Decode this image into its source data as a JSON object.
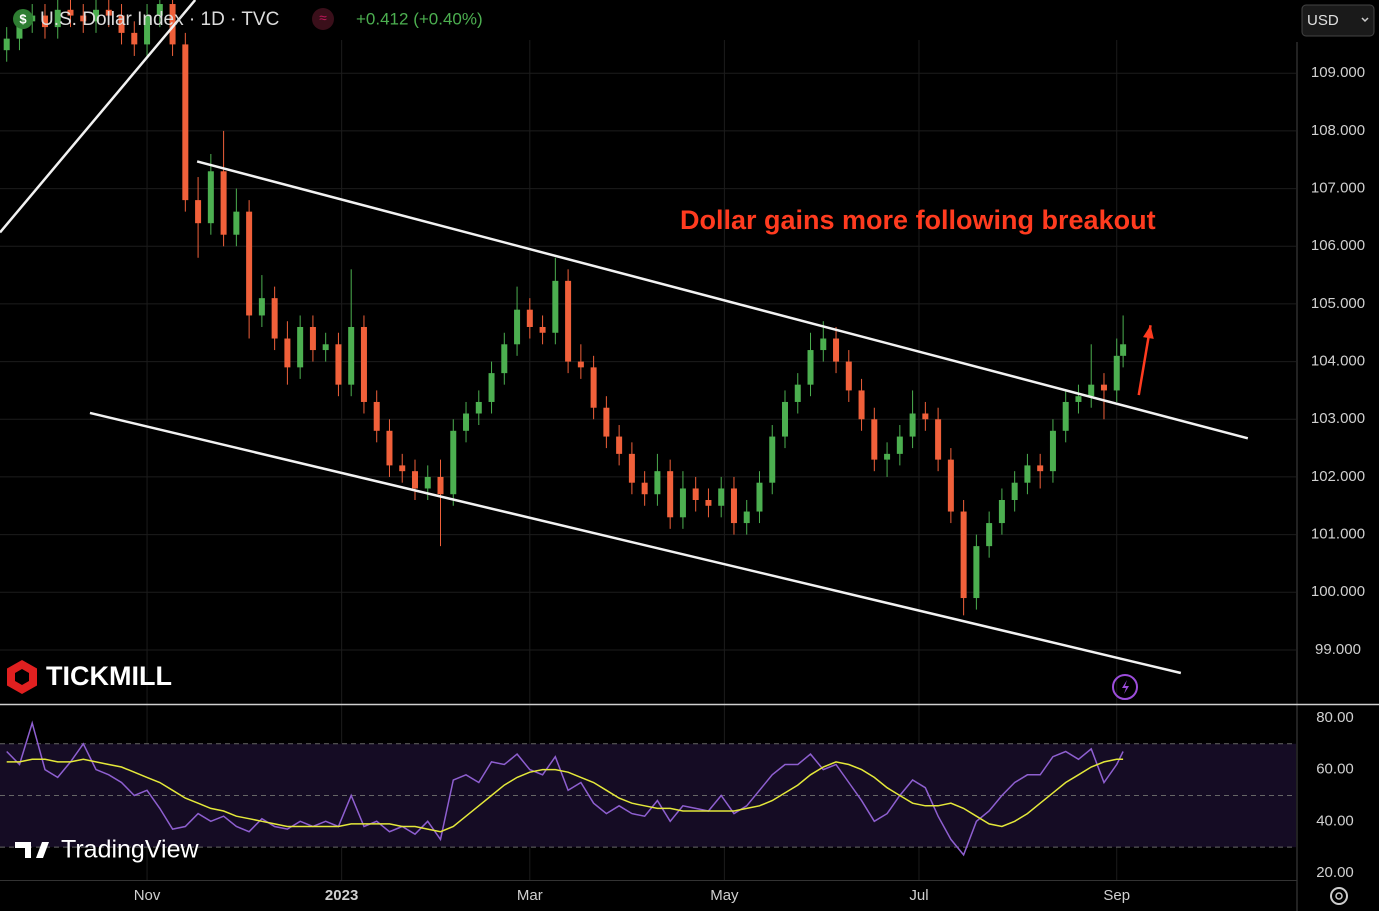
{
  "chart_data": {
    "type": "candlestick",
    "title": "U.S. Dollar Index · 1D · TVC",
    "change": "+0.412 (+0.40%)",
    "currency": "USD",
    "annotation": "Dollar gains more following breakout",
    "brand": "TICKMILL",
    "watermark": "TradingView",
    "up_color": "#4caf50",
    "down_color": "#f0603a",
    "grid": true,
    "x": [
      -44,
      -40,
      -36,
      -32,
      -28,
      -24,
      -20,
      -16,
      -12,
      -8,
      -4,
      0,
      4,
      8,
      12,
      16,
      20,
      24,
      28,
      32,
      36,
      40,
      44,
      48,
      52,
      56,
      60,
      64,
      68,
      72,
      76,
      80,
      84,
      88,
      92,
      96,
      100,
      104,
      108,
      112,
      116,
      120,
      124,
      128,
      132,
      136,
      140,
      144,
      148,
      152,
      156,
      160,
      164,
      168,
      172,
      176,
      180,
      184,
      188,
      192,
      196,
      200,
      204,
      208,
      212,
      216,
      220,
      224,
      228,
      232,
      236,
      240,
      244,
      248,
      252,
      256,
      260,
      264,
      268,
      272,
      276,
      280,
      284,
      288,
      292,
      296,
      300,
      304,
      306
    ],
    "open": [
      109.4,
      109.6,
      109.9,
      110.0,
      109.8,
      110.1,
      110.0,
      109.9,
      110.1,
      110.0,
      109.7,
      109.5,
      110.0,
      110.2,
      109.5,
      106.8,
      106.4,
      107.3,
      106.2,
      106.6,
      104.8,
      105.1,
      104.4,
      103.9,
      104.6,
      104.2,
      104.3,
      103.6,
      104.6,
      103.3,
      102.8,
      102.2,
      102.1,
      101.8,
      102.0,
      101.7,
      102.8,
      103.1,
      103.3,
      103.8,
      104.3,
      104.9,
      104.6,
      104.5,
      105.4,
      104.0,
      103.9,
      103.2,
      102.7,
      102.4,
      101.9,
      101.7,
      102.1,
      101.3,
      101.8,
      101.6,
      101.5,
      101.8,
      101.2,
      101.4,
      101.9,
      102.7,
      103.3,
      103.6,
      104.2,
      104.4,
      104.0,
      103.5,
      103.0,
      102.3,
      102.4,
      102.7,
      103.1,
      103.0,
      102.3,
      101.4,
      99.9,
      100.8,
      101.2,
      101.6,
      101.9,
      102.2,
      102.1,
      102.8,
      103.3,
      103.4,
      103.6,
      103.5,
      104.1
    ],
    "high": [
      109.8,
      110.1,
      110.2,
      110.2,
      110.3,
      110.3,
      110.2,
      110.3,
      110.3,
      110.2,
      109.9,
      110.2,
      110.4,
      110.4,
      109.7,
      107.2,
      107.6,
      108.0,
      107.0,
      106.8,
      105.5,
      105.3,
      104.7,
      104.8,
      104.8,
      104.5,
      104.5,
      105.6,
      104.8,
      103.5,
      103.0,
      102.4,
      102.3,
      102.2,
      102.3,
      103.0,
      103.3,
      103.5,
      104.0,
      104.5,
      105.3,
      105.1,
      104.8,
      105.8,
      105.6,
      104.3,
      104.1,
      103.4,
      102.9,
      102.6,
      102.1,
      102.4,
      102.3,
      102.1,
      102.0,
      101.8,
      102.0,
      102.0,
      101.6,
      102.1,
      102.9,
      103.5,
      103.8,
      104.5,
      104.7,
      104.6,
      104.2,
      103.7,
      103.2,
      102.6,
      102.9,
      103.5,
      103.3,
      103.2,
      102.5,
      101.6,
      101.0,
      101.4,
      101.8,
      102.1,
      102.4,
      102.4,
      103.0,
      103.5,
      103.6,
      104.3,
      103.8,
      104.4,
      104.8
    ],
    "low": [
      109.2,
      109.4,
      109.7,
      109.6,
      109.6,
      109.8,
      109.7,
      109.7,
      109.8,
      109.5,
      109.3,
      109.3,
      109.8,
      109.3,
      106.6,
      105.8,
      106.2,
      106.0,
      106.0,
      104.4,
      104.6,
      104.2,
      103.6,
      103.7,
      104.0,
      104.0,
      103.4,
      103.4,
      103.1,
      102.6,
      102.0,
      101.9,
      101.6,
      101.6,
      100.8,
      101.5,
      102.6,
      102.9,
      103.1,
      103.6,
      104.1,
      104.4,
      104.3,
      104.3,
      103.8,
      103.7,
      103.0,
      102.5,
      102.2,
      101.7,
      101.5,
      101.5,
      101.1,
      101.1,
      101.4,
      101.3,
      101.3,
      101.0,
      101.0,
      101.2,
      101.7,
      102.5,
      103.1,
      103.4,
      104.0,
      103.8,
      103.3,
      102.8,
      102.1,
      102.0,
      102.2,
      102.5,
      102.8,
      102.1,
      101.2,
      99.6,
      99.7,
      100.6,
      101.0,
      101.4,
      101.7,
      101.8,
      101.9,
      102.6,
      103.1,
      103.2,
      103.0,
      103.3,
      103.9
    ],
    "close": [
      109.6,
      109.9,
      110.0,
      109.8,
      110.1,
      110.0,
      109.9,
      110.1,
      110.0,
      109.7,
      109.5,
      110.0,
      110.2,
      109.5,
      106.8,
      106.4,
      107.3,
      106.2,
      106.6,
      104.8,
      105.1,
      104.4,
      103.9,
      104.6,
      104.2,
      104.3,
      103.6,
      104.6,
      103.3,
      102.8,
      102.2,
      102.1,
      101.8,
      102.0,
      101.7,
      102.8,
      103.1,
      103.3,
      103.8,
      104.3,
      104.9,
      104.6,
      104.5,
      105.4,
      104.0,
      103.9,
      103.2,
      102.7,
      102.4,
      101.9,
      101.7,
      102.1,
      101.3,
      101.8,
      101.6,
      101.5,
      101.8,
      101.2,
      101.4,
      101.9,
      102.7,
      103.3,
      103.6,
      104.2,
      104.4,
      104.0,
      103.5,
      103.0,
      102.3,
      102.4,
      102.7,
      103.1,
      103.0,
      102.3,
      101.4,
      99.9,
      100.8,
      101.2,
      101.6,
      101.9,
      102.2,
      102.1,
      102.8,
      103.3,
      103.4,
      103.6,
      103.5,
      104.1,
      104.3
    ],
    "xlim": [
      -46.1,
      360.2
    ],
    "xticks": [
      {
        "value": 0,
        "label": "Nov"
      },
      {
        "value": 61,
        "label": "2023"
      },
      {
        "value": 120,
        "label": "Mar"
      },
      {
        "value": 181,
        "label": "May"
      },
      {
        "value": 242,
        "label": "Jul"
      },
      {
        "value": 304,
        "label": "Sep"
      }
    ],
    "ylim": [
      98.08,
      110.27
    ],
    "yticks": [
      {
        "value": 99,
        "label": "99.000"
      },
      {
        "value": 100,
        "label": "100.000"
      },
      {
        "value": 101,
        "label": "101.000"
      },
      {
        "value": 102,
        "label": "102.000"
      },
      {
        "value": 103,
        "label": "103.000"
      },
      {
        "value": 104,
        "label": "104.000"
      },
      {
        "value": 105,
        "label": "105.000"
      },
      {
        "value": 106,
        "label": "106.000"
      },
      {
        "value": 107,
        "label": "107.000"
      },
      {
        "value": 108,
        "label": "108.000"
      },
      {
        "value": 109,
        "label": "109.000"
      }
    ],
    "trendlines": [
      {
        "x": [
          -46.1,
          15.1
        ],
        "y": [
          106.24,
          110.27
        ]
      },
      {
        "x": [
          15.7,
          345.1
        ],
        "y": [
          107.47,
          102.67
        ]
      },
      {
        "x": [
          -17.9,
          324.1
        ],
        "y": [
          103.11,
          98.6
        ]
      }
    ],
    "arrow": {
      "x": [
        310.9,
        314.6
      ],
      "y": [
        103.42,
        104.63
      ],
      "color": "#ff3b1f"
    },
    "rsi": {
      "color": "#8e5fd0",
      "ma_color": "#e4e83a",
      "ylim": [
        17.3,
        85.0
      ],
      "yticks": [
        {
          "value": 20,
          "label": "20.00"
        },
        {
          "value": 40,
          "label": "40.00"
        },
        {
          "value": 60,
          "label": "60.00"
        },
        {
          "value": 80,
          "label": "80.00"
        }
      ],
      "bands": [
        70,
        50,
        30
      ],
      "values": [
        67,
        62,
        78,
        60,
        57,
        63,
        70,
        60,
        58,
        55,
        50,
        52,
        45,
        37,
        38,
        43,
        40,
        42,
        38,
        36,
        41,
        38,
        37,
        40,
        38,
        40,
        38,
        50,
        38,
        40,
        36,
        38,
        35,
        40,
        33,
        56,
        58,
        55,
        63,
        62,
        66,
        60,
        58,
        65,
        52,
        55,
        47,
        43,
        46,
        43,
        42,
        48,
        40,
        46,
        45,
        44,
        50,
        43,
        46,
        52,
        58,
        62,
        62,
        66,
        60,
        62,
        55,
        48,
        40,
        43,
        50,
        56,
        53,
        42,
        33,
        27,
        40,
        44,
        50,
        55,
        58,
        58,
        65,
        67,
        64,
        68,
        55,
        62,
        67
      ],
      "ma": [
        63,
        63,
        64,
        64,
        63,
        63,
        64,
        63,
        62,
        61,
        59,
        57,
        55,
        52,
        49,
        47,
        45,
        44,
        42,
        41,
        40,
        39,
        38,
        38,
        38,
        38,
        38,
        39,
        39,
        39,
        39,
        38,
        38,
        37,
        36,
        38,
        42,
        46,
        50,
        54,
        57,
        59,
        60,
        60,
        59,
        57,
        55,
        52,
        49,
        47,
        46,
        45,
        45,
        44,
        44,
        44,
        44,
        44,
        45,
        46,
        48,
        51,
        54,
        58,
        61,
        63,
        62,
        60,
        57,
        53,
        50,
        47,
        46,
        46,
        47,
        45,
        42,
        39,
        38,
        40,
        43,
        47,
        51,
        55,
        58,
        61,
        63,
        64,
        64
      ]
    }
  }
}
